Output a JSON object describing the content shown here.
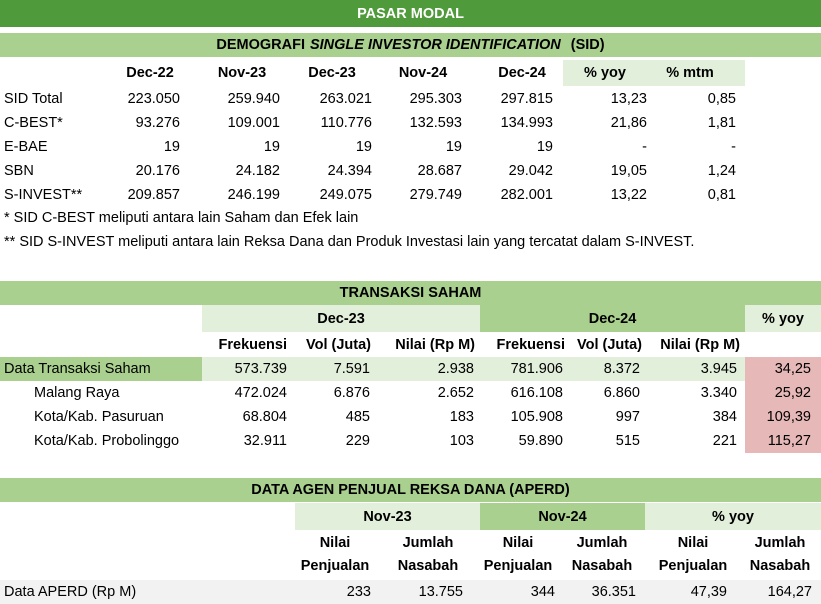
{
  "title": "PASAR MODAL",
  "sid": {
    "title": [
      "DEMOGRAFI",
      "SINGLE INVESTOR IDENTIFICATION",
      "(SID)"
    ],
    "columns": [
      "Dec-22",
      "Nov-23",
      "Dec-23",
      "Nov-24",
      "Dec-24",
      "% yoy",
      "% mtm"
    ],
    "rows": [
      [
        "SID Total",
        "223.050",
        "259.940",
        "263.021",
        "295.303",
        "297.815",
        "13,23",
        "0,85"
      ],
      [
        "C-BEST*",
        "93.276",
        "109.001",
        "110.776",
        "132.593",
        "134.993",
        "21,86",
        "1,81"
      ],
      [
        "E-BAE",
        "19",
        "19",
        "19",
        "19",
        "19",
        "-",
        "-"
      ],
      [
        "SBN",
        "20.176",
        "24.182",
        "24.394",
        "28.687",
        "29.042",
        "19,05",
        "1,24"
      ],
      [
        "S-INVEST**",
        "209.857",
        "246.199",
        "249.075",
        "279.749",
        "282.001",
        "13,22",
        "0,81"
      ]
    ],
    "notes": [
      "* SID C-BEST meliputi antara lain Saham dan Efek lain",
      "** SID S-INVEST meliputi antara lain Reksa Dana dan Produk Investasi lain yang tercatat dalam S-INVEST."
    ]
  },
  "saham": {
    "title": "TRANSAKSI SAHAM",
    "periods": [
      "Dec-23",
      "Dec-24",
      "% yoy"
    ],
    "columns": [
      "Frekuensi",
      "Vol (Juta)",
      "Nilai (Rp M)",
      "Frekuensi",
      "Vol (Juta)",
      "Nilai (Rp M)"
    ],
    "rows": [
      [
        "Data Transaksi Saham",
        "573.739",
        "7.591",
        "2.938",
        "781.906",
        "8.372",
        "3.945",
        "34,25"
      ],
      [
        "Malang Raya",
        "472.024",
        "6.876",
        "2.652",
        "616.108",
        "6.860",
        "3.340",
        "25,92"
      ],
      [
        "Kota/Kab. Pasuruan",
        "68.804",
        "485",
        "183",
        "105.908",
        "997",
        "384",
        "109,39"
      ],
      [
        "Kota/Kab. Probolinggo",
        "32.911",
        "229",
        "103",
        "59.890",
        "515",
        "221",
        "115,27"
      ]
    ]
  },
  "aperd": {
    "title": "DATA AGEN PENJUAL REKSA DANA (APERD)",
    "periods": [
      "Nov-23",
      "Nov-24",
      "% yoy"
    ],
    "columns": [
      [
        "Nilai",
        "Penjualan"
      ],
      [
        "Jumlah",
        "Nasabah"
      ],
      [
        "Nilai",
        "Penjualan"
      ],
      [
        "Jumlah",
        "Nasabah"
      ],
      [
        "Nilai",
        "Penjualan"
      ],
      [
        "Jumlah",
        "Nasabah"
      ]
    ],
    "rows": [
      [
        "Data APERD (Rp M)",
        "233",
        "13.755",
        "344",
        "36.351",
        "47,39",
        "164,27"
      ]
    ]
  }
}
